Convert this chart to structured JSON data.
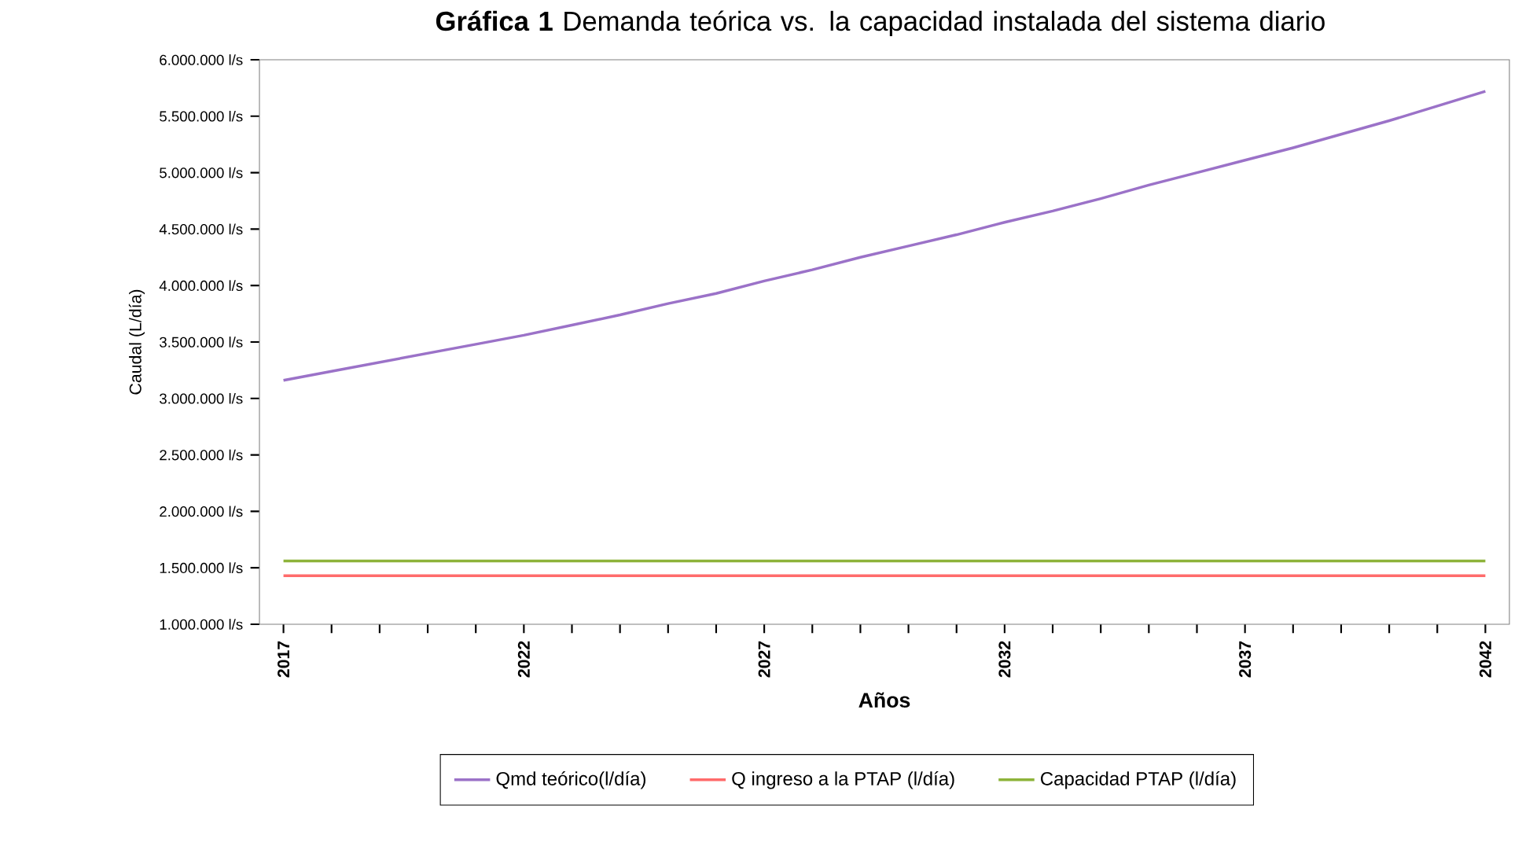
{
  "chart_data": {
    "type": "line",
    "title": "**Gráfica 1** Demanda teórica vs. la capacidad instalada del sistema diario",
    "xlabel": "Años",
    "ylabel": "Caudal (L/día)",
    "x": [
      2017,
      2018,
      2019,
      2020,
      2021,
      2022,
      2023,
      2024,
      2025,
      2026,
      2027,
      2028,
      2029,
      2030,
      2031,
      2032,
      2033,
      2034,
      2035,
      2036,
      2037,
      2038,
      2039,
      2040,
      2041,
      2042
    ],
    "series": [
      {
        "name": "Qmd teórico(l/día)",
        "color": "#9b72c8",
        "values": [
          3160000,
          3240000,
          3320000,
          3400000,
          3480000,
          3560000,
          3650000,
          3740000,
          3840000,
          3930000,
          4040000,
          4140000,
          4250000,
          4350000,
          4450000,
          4560000,
          4660000,
          4770000,
          4890000,
          5000000,
          5110000,
          5220000,
          5340000,
          5460000,
          5590000,
          5720000
        ]
      },
      {
        "name": "Q ingreso a la PTAP (l/día)",
        "color": "#ff6b6b",
        "values": [
          1430000,
          1430000,
          1430000,
          1430000,
          1430000,
          1430000,
          1430000,
          1430000,
          1430000,
          1430000,
          1430000,
          1430000,
          1430000,
          1430000,
          1430000,
          1430000,
          1430000,
          1430000,
          1430000,
          1430000,
          1430000,
          1430000,
          1430000,
          1430000,
          1430000,
          1430000
        ]
      },
      {
        "name": "Capacidad PTAP   (l/día)",
        "color": "#8db33a",
        "values": [
          1560000,
          1560000,
          1560000,
          1560000,
          1560000,
          1560000,
          1560000,
          1560000,
          1560000,
          1560000,
          1560000,
          1560000,
          1560000,
          1560000,
          1560000,
          1560000,
          1560000,
          1560000,
          1560000,
          1560000,
          1560000,
          1560000,
          1560000,
          1560000,
          1560000,
          1560000
        ]
      }
    ],
    "xlim": [
      2016.5,
      2042.5
    ],
    "xticks": [
      2017,
      {
        "value": 2018,
        "label": null
      },
      {
        "value": 2019,
        "label": null
      },
      {
        "value": 2020,
        "label": null
      },
      {
        "value": 2021,
        "label": null
      },
      2022,
      {
        "value": 2023,
        "label": null
      },
      {
        "value": 2024,
        "label": null
      },
      {
        "value": 2025,
        "label": null
      },
      {
        "value": 2026,
        "label": null
      },
      2027,
      {
        "value": 2028,
        "label": null
      },
      {
        "value": 2029,
        "label": null
      },
      {
        "value": 2030,
        "label": null
      },
      {
        "value": 2031,
        "label": null
      },
      2032,
      {
        "value": 2033,
        "label": null
      },
      {
        "value": 2034,
        "label": null
      },
      {
        "value": 2035,
        "label": null
      },
      {
        "value": 2036,
        "label": null
      },
      2037,
      {
        "value": 2038,
        "label": null
      },
      {
        "value": 2039,
        "label": null
      },
      {
        "value": 2040,
        "label": null
      },
      {
        "value": 2041,
        "label": null
      },
      2042
    ],
    "ylim": [
      1000000,
      6000000
    ],
    "yticks": [
      {
        "value": 1000000,
        "label": "1.000.000 l/s"
      },
      {
        "value": 1500000,
        "label": "1.500.000 l/s"
      },
      {
        "value": 2000000,
        "label": "2.000.000 l/s"
      },
      {
        "value": 2500000,
        "label": "2.500.000 l/s"
      },
      {
        "value": 3000000,
        "label": "3.000.000 l/s"
      },
      {
        "value": 3500000,
        "label": "3.500.000 l/s"
      },
      {
        "value": 4000000,
        "label": "4.000.000 l/s"
      },
      {
        "value": 4500000,
        "label": "4.500.000 l/s"
      },
      {
        "value": 5000000,
        "label": "5.000.000 l/s"
      },
      {
        "value": 5500000,
        "label": "5.500.000 l/s"
      },
      {
        "value": 6000000,
        "label": "6.000.000 l/s"
      }
    ],
    "grid": false,
    "legend": "bottom",
    "marker": "none",
    "line_style": "solid"
  }
}
